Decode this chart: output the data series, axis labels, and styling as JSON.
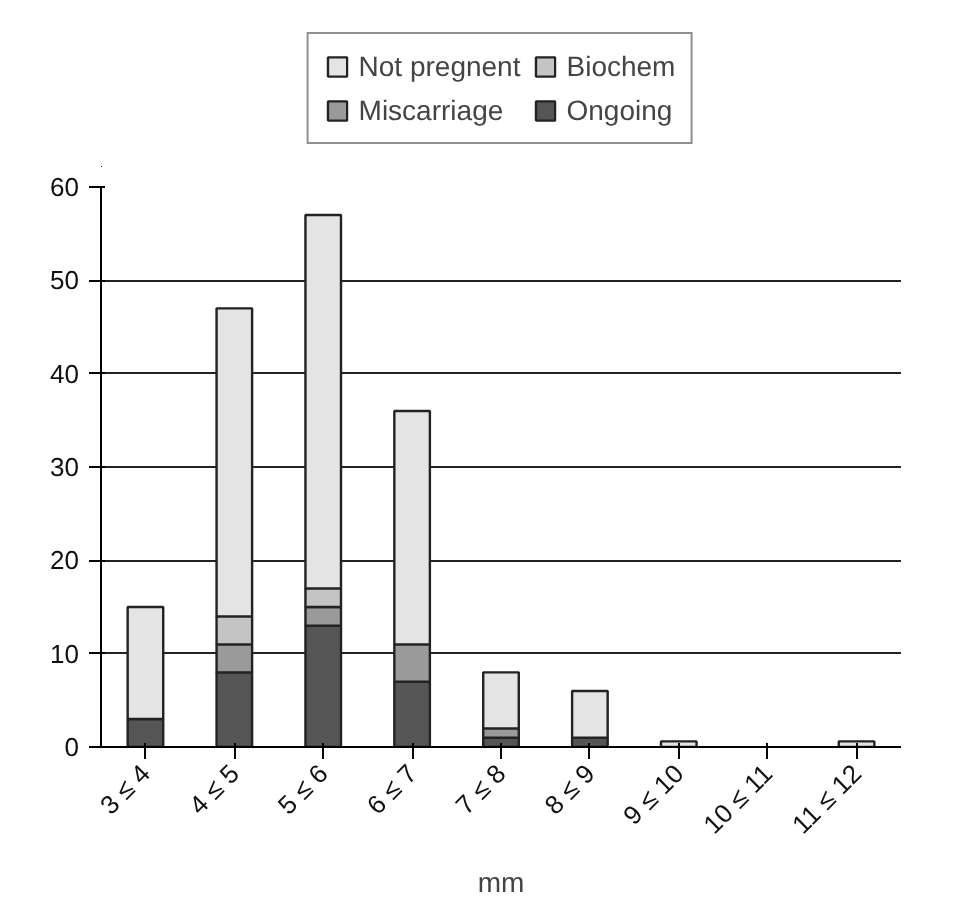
{
  "chart_data": {
    "type": "bar",
    "stacked": true,
    "xlabel": "mm",
    "categories": [
      "3 ≤ 4",
      "4 ≤ 5",
      "5 ≤ 6",
      "6 ≤ 7",
      "7 ≤ 8",
      "8 ≤ 9",
      "9 ≤ 10",
      "10 ≤ 11",
      "11 ≤ 12"
    ],
    "series": [
      {
        "name": "Ongoing",
        "color": "#555555",
        "values": [
          3,
          8,
          13,
          7,
          1,
          1,
          0,
          0,
          0
        ]
      },
      {
        "name": "Miscarriage",
        "color": "#9a9a9a",
        "values": [
          0,
          3,
          2,
          4,
          1,
          0,
          0,
          0,
          0
        ]
      },
      {
        "name": "Biochem",
        "color": "#c4c4c4",
        "values": [
          0,
          3,
          2,
          0,
          0,
          0,
          0,
          0,
          0
        ]
      },
      {
        "name": "Not pregnent",
        "color": "#e4e4e4",
        "values": [
          12,
          33,
          40,
          25,
          6,
          5,
          0.6,
          0,
          0.6
        ]
      }
    ],
    "ylim": [
      0,
      60
    ],
    "yticks": [
      0,
      10,
      20,
      30,
      40,
      50,
      60
    ],
    "grid": "y",
    "legend": "top"
  }
}
